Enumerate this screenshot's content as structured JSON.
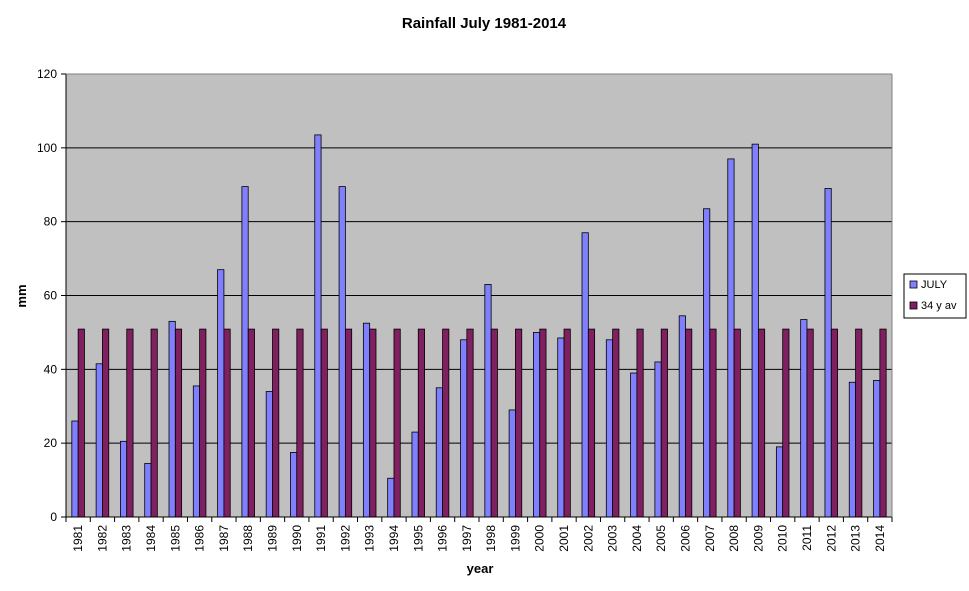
{
  "chart_data": {
    "type": "bar",
    "title": "Rainfall July 1981-2014",
    "xlabel": "year",
    "ylabel": "mm",
    "ylim": [
      0,
      120
    ],
    "yticks": [
      0,
      20,
      40,
      60,
      80,
      100,
      120
    ],
    "grid": true,
    "legend_position": "right",
    "categories": [
      "1981",
      "1982",
      "1983",
      "1984",
      "1985",
      "1986",
      "1987",
      "1988",
      "1989",
      "1990",
      "1991",
      "1992",
      "1993",
      "1994",
      "1995",
      "1996",
      "1997",
      "1998",
      "1999",
      "2000",
      "2001",
      "2002",
      "2003",
      "2004",
      "2005",
      "2006",
      "2007",
      "2008",
      "2009",
      "2010",
      "2011",
      "2012",
      "2013",
      "2014"
    ],
    "series": [
      {
        "name": "JULY",
        "color": "#8080FF",
        "values": [
          26,
          41.5,
          20.5,
          14.5,
          53,
          35.5,
          67,
          89.5,
          34,
          17.5,
          103.5,
          89.5,
          52.5,
          10.5,
          23,
          35,
          48,
          63,
          29,
          50,
          48.5,
          77,
          48,
          39,
          42,
          54.5,
          83.5,
          97,
          101,
          19,
          53.5,
          89,
          36.5,
          37
        ]
      },
      {
        "name": "34 y av",
        "color": "#802060",
        "values": [
          50.9,
          50.9,
          50.9,
          50.9,
          50.9,
          50.9,
          50.9,
          50.9,
          50.9,
          50.9,
          50.9,
          50.9,
          50.9,
          50.9,
          50.9,
          50.9,
          50.9,
          50.9,
          50.9,
          50.9,
          50.9,
          50.9,
          50.9,
          50.9,
          50.9,
          50.9,
          50.9,
          50.9,
          50.9,
          50.9,
          50.9,
          50.9,
          50.9,
          50.9
        ]
      }
    ],
    "plot_background": "#C0C0C0"
  }
}
